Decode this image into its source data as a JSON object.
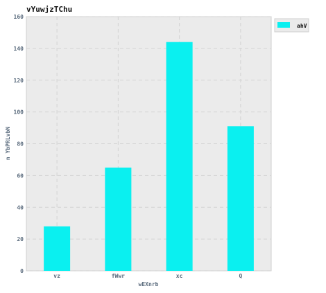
{
  "chart_data": {
    "type": "bar",
    "title": "vYuwjzTChu",
    "xlabel": "wEXnrb",
    "ylabel": "n YbPRLvbN",
    "categories": [
      "vz",
      "fWwr",
      "xc",
      "Q"
    ],
    "series": [
      {
        "name": "ahV",
        "values": [
          28,
          65,
          144,
          91
        ]
      }
    ],
    "ylim": [
      0,
      160
    ],
    "yticks": [
      0,
      20,
      40,
      60,
      80,
      100,
      120,
      140,
      160
    ],
    "grid": true,
    "legend_position": "top-right",
    "colors": {
      "bar": "#0af0f0",
      "plot_bg": "#ebebeb",
      "grid": "#d3d3d3"
    }
  }
}
